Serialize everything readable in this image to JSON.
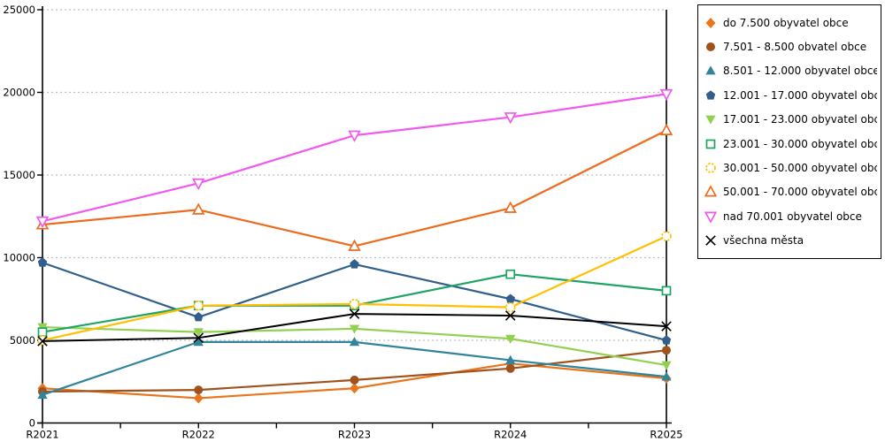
{
  "chart_data": {
    "type": "line",
    "title": "",
    "xlabel": "",
    "ylabel": "",
    "categories": [
      "R2021",
      "R2022",
      "R2023",
      "R2024",
      "R2025"
    ],
    "y_ticks": [
      0,
      5000,
      10000,
      15000,
      20000,
      25000
    ],
    "ylim": [
      0,
      25000
    ],
    "grid": "horizontal-dashed",
    "legend_position": "right-outside",
    "series": [
      {
        "name": "do 7.500 obyvatel obce",
        "marker": "diamond-filled",
        "color": "#E8761E",
        "values": [
          2100,
          1500,
          2100,
          3600,
          2700
        ]
      },
      {
        "name": "7.501 - 8.500 obvatel obce",
        "marker": "circle-filled",
        "color": "#A0521D",
        "values": [
          1900,
          2000,
          2600,
          3300,
          4400
        ]
      },
      {
        "name": "8.501 - 12.000 obyvatel obce",
        "marker": "triangle-up-filled",
        "color": "#31849B",
        "values": [
          1700,
          4900,
          4900,
          3800,
          2800
        ]
      },
      {
        "name": "12.001 - 17.000 obyvatel obc...",
        "marker": "pentagon-filled",
        "color": "#305F8C",
        "values": [
          9700,
          6400,
          9600,
          7500,
          5000
        ]
      },
      {
        "name": "17.001 - 23.000 obyvatel obc...",
        "marker": "triangle-down-filled",
        "color": "#92D050",
        "values": [
          5800,
          5500,
          5700,
          5100,
          3500
        ]
      },
      {
        "name": "23.001 - 30.000 obyvatel obc...",
        "marker": "square-open",
        "color": "#1FA463",
        "values": [
          5500,
          7100,
          7100,
          9000,
          8000
        ]
      },
      {
        "name": "30.001 - 50.000 obyvatel obc...",
        "marker": "circle-open-dashed",
        "color": "#FFC000",
        "values": [
          5000,
          7100,
          7200,
          7000,
          11300
        ]
      },
      {
        "name": "50.001 - 70.000 obyvatel obc...",
        "marker": "triangle-up-open",
        "color": "#ED6B1E",
        "values": [
          12000,
          12900,
          10700,
          13000,
          17700
        ]
      },
      {
        "name": "nad 70.001 obyvatel obce",
        "marker": "triangle-down-open",
        "color": "#F259EF",
        "values": [
          12200,
          14500,
          17400,
          18500,
          19900
        ]
      },
      {
        "name": "všechna města",
        "marker": "x",
        "color": "#000000",
        "values": [
          4950,
          5150,
          6600,
          6500,
          5850
        ]
      }
    ]
  },
  "style": {
    "grid_color": "#C0C0C0",
    "axis_color": "#000000",
    "background": "#FFFFFF"
  }
}
